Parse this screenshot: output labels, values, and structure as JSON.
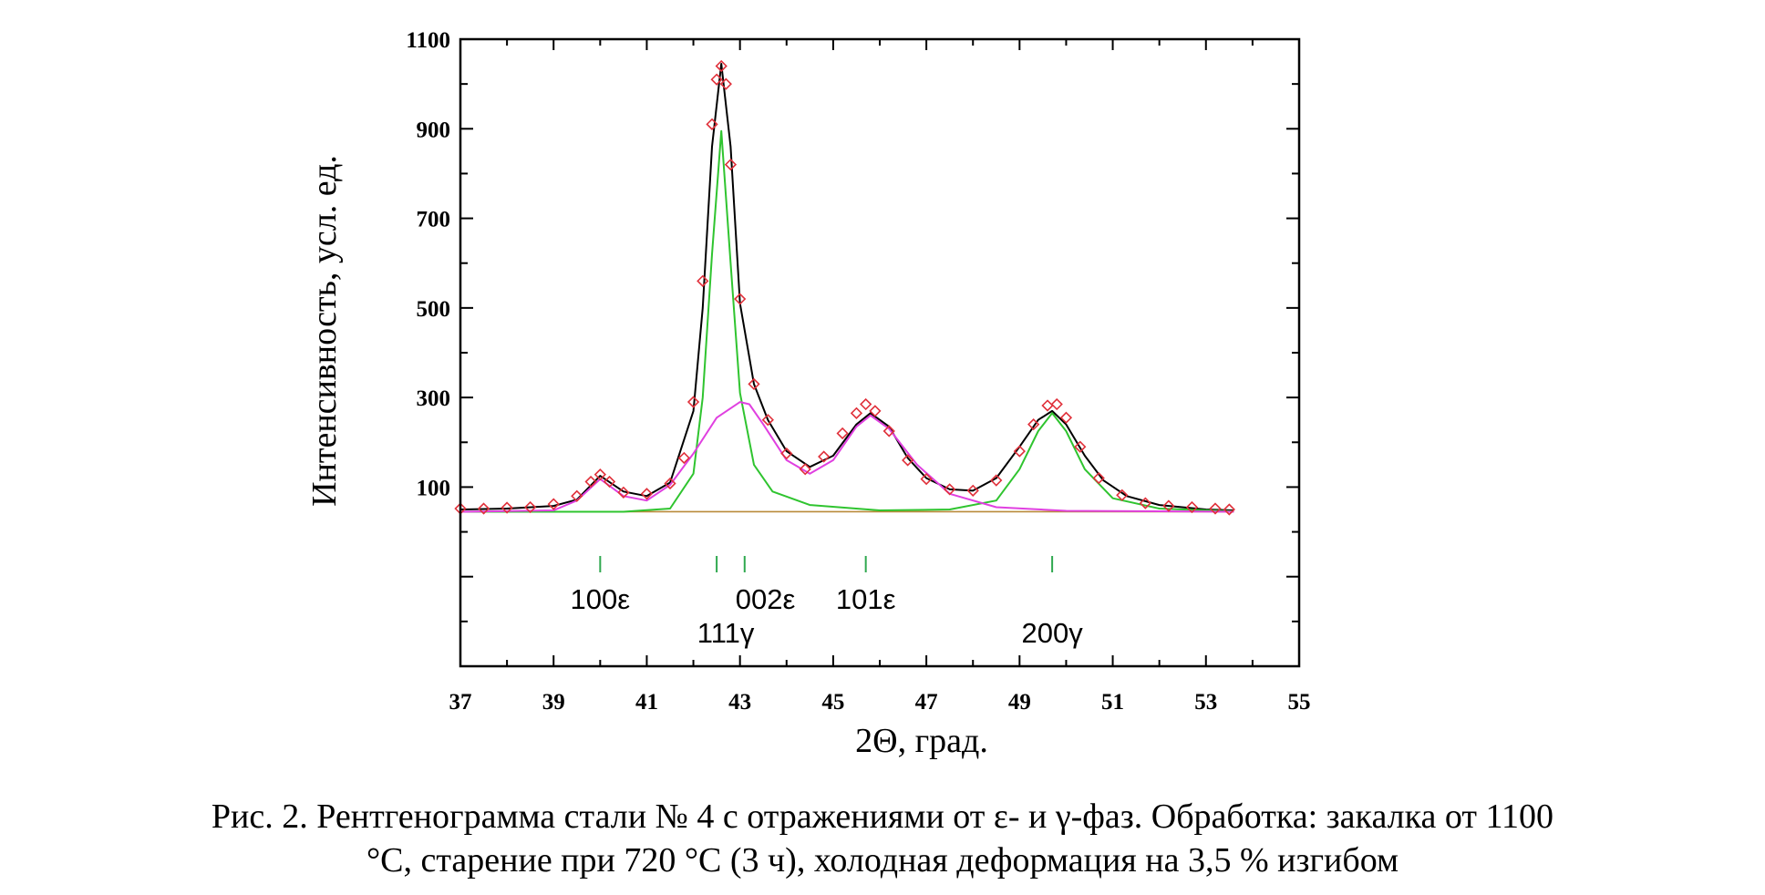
{
  "chart_data": {
    "type": "scatter",
    "xlabel": "2Θ, град.",
    "ylabel": "Интенсивность, усл. ед.",
    "xlim": [
      37,
      55
    ],
    "ylim": [
      -300,
      1100
    ],
    "x_ticks": [
      "37",
      "39",
      "41",
      "43",
      "45",
      "47",
      "49",
      "51",
      "53",
      "55"
    ],
    "y_ticks": [
      "100",
      "300",
      "500",
      "700",
      "900",
      "1100"
    ],
    "background": 45,
    "series": [
      {
        "style": "observed-points",
        "color": "#e0303a",
        "x": [
          37.0,
          37.5,
          38.0,
          38.5,
          39.0,
          39.5,
          39.8,
          40.0,
          40.2,
          40.5,
          41.0,
          41.5,
          41.8,
          42.0,
          42.2,
          42.4,
          42.5,
          42.6,
          42.7,
          42.8,
          43.0,
          43.3,
          43.6,
          44.0,
          44.4,
          44.8,
          45.2,
          45.5,
          45.7,
          45.9,
          46.2,
          46.6,
          47.0,
          47.5,
          48.0,
          48.5,
          49.0,
          49.3,
          49.6,
          49.8,
          50.0,
          50.3,
          50.7,
          51.2,
          51.7,
          52.2,
          52.7,
          53.2,
          53.5
        ],
        "y": [
          52,
          52,
          54,
          55,
          62,
          80,
          112,
          128,
          112,
          88,
          85,
          108,
          165,
          290,
          560,
          910,
          1010,
          1040,
          1000,
          820,
          520,
          330,
          250,
          175,
          140,
          168,
          220,
          265,
          285,
          270,
          225,
          160,
          118,
          95,
          92,
          115,
          180,
          240,
          282,
          285,
          255,
          190,
          120,
          82,
          64,
          58,
          55,
          52,
          50
        ]
      },
      {
        "style": "total-fit",
        "color": "#000000",
        "x": [
          37.0,
          38.0,
          39.0,
          39.5,
          40.0,
          40.5,
          41.0,
          41.5,
          42.0,
          42.2,
          42.4,
          42.6,
          42.8,
          43.0,
          43.3,
          43.6,
          44.0,
          44.5,
          45.0,
          45.5,
          45.8,
          46.2,
          46.6,
          47.0,
          47.5,
          48.0,
          48.5,
          49.0,
          49.4,
          49.7,
          50.0,
          50.4,
          50.8,
          51.3,
          52.0,
          53.0,
          53.6
        ],
        "y": [
          50,
          52,
          58,
          72,
          125,
          90,
          80,
          110,
          270,
          500,
          860,
          1045,
          860,
          510,
          330,
          250,
          180,
          145,
          170,
          240,
          265,
          235,
          165,
          120,
          95,
          92,
          120,
          190,
          250,
          270,
          240,
          170,
          115,
          80,
          60,
          50,
          48
        ]
      },
      {
        "style": "component-gamma",
        "color": "#2fc42f",
        "x": [
          37.0,
          39.0,
          40.5,
          41.5,
          42.0,
          42.2,
          42.4,
          42.6,
          42.8,
          43.0,
          43.3,
          43.7,
          44.5,
          46.0,
          47.5,
          48.5,
          49.0,
          49.4,
          49.7,
          50.0,
          50.4,
          51.0,
          52.0,
          53.6
        ],
        "y": [
          45,
          45,
          45,
          52,
          130,
          300,
          620,
          895,
          600,
          310,
          150,
          90,
          60,
          48,
          50,
          70,
          140,
          225,
          265,
          225,
          140,
          75,
          52,
          46
        ]
      },
      {
        "style": "component-epsilon",
        "color": "#e040e0",
        "x": [
          37.0,
          39.0,
          39.5,
          40.0,
          40.5,
          41.0,
          41.5,
          42.0,
          42.5,
          43.0,
          43.2,
          43.5,
          44.0,
          44.5,
          45.0,
          45.5,
          45.8,
          46.2,
          46.8,
          47.5,
          48.5,
          50.0,
          53.6
        ],
        "y": [
          45,
          48,
          70,
          118,
          80,
          70,
          105,
          175,
          255,
          290,
          285,
          240,
          160,
          130,
          160,
          235,
          260,
          230,
          150,
          85,
          55,
          47,
          45
        ]
      }
    ],
    "reflections": [
      {
        "label": "100ε",
        "x": 40.0
      },
      {
        "label": "111γ",
        "x": 42.5
      },
      {
        "label": "002ε",
        "x": 43.1
      },
      {
        "label": "101ε",
        "x": 45.7
      },
      {
        "label": "200γ",
        "x": 49.7
      }
    ],
    "marker_color": "#2fa84f",
    "grid": false
  },
  "caption": {
    "line1": "Рис. 2. Рентгенограмма стали № 4 с отражениями от ε- и γ-фаз. Обработка: закалка от 1100",
    "line2": "°С, старение при 720 °С (3 ч), холодная деформация на 3,5 % изгибом"
  }
}
